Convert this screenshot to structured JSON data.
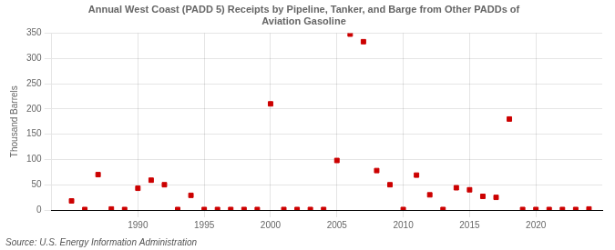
{
  "chart_data": {
    "type": "scatter",
    "title": "Annual West Coast (PADD 5) Receipts by Pipeline, Tanker, and Barge from Other PADDs of\nAviation Gasoline",
    "ylabel": "Thousand Barrels",
    "annotation": "Source: U.S. Energy Information Administration",
    "x": [
      1985,
      1986,
      1987,
      1988,
      1989,
      1990,
      1991,
      1992,
      1993,
      1994,
      1995,
      1996,
      1997,
      1998,
      1999,
      2000,
      2001,
      2002,
      2003,
      2004,
      2005,
      2006,
      2007,
      2008,
      2009,
      2010,
      2011,
      2012,
      2013,
      2014,
      2015,
      2016,
      2017,
      2018,
      2019,
      2020,
      2021,
      2022,
      2023,
      2024
    ],
    "values": [
      18,
      1,
      70,
      2,
      1,
      43,
      59,
      50,
      1,
      29,
      1,
      1,
      1,
      1,
      1,
      210,
      1,
      1,
      1,
      1,
      98,
      348,
      333,
      78,
      50,
      1,
      69,
      30,
      1,
      44,
      40,
      27,
      25,
      180,
      1,
      1,
      1,
      1,
      1,
      2
    ],
    "color": "#cc0000",
    "marker": "square",
    "xlim": [
      1983.5,
      2025
    ],
    "ylim": [
      0,
      350
    ],
    "xticks": [
      1990,
      1995,
      2000,
      2005,
      2010,
      2015,
      2020
    ],
    "yticks": [
      0,
      50,
      100,
      150,
      200,
      250,
      300,
      350
    ],
    "grid": true
  }
}
